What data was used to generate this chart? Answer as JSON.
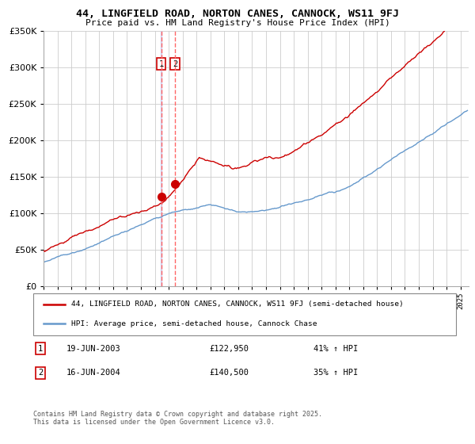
{
  "title1": "44, LINGFIELD ROAD, NORTON CANES, CANNOCK, WS11 9FJ",
  "title2": "Price paid vs. HM Land Registry's House Price Index (HPI)",
  "legend_line1": "44, LINGFIELD ROAD, NORTON CANES, CANNOCK, WS11 9FJ (semi-detached house)",
  "legend_line2": "HPI: Average price, semi-detached house, Cannock Chase",
  "sale1_date": "19-JUN-2003",
  "sale1_price": 122950,
  "sale1_hpi": "41% ↑ HPI",
  "sale2_date": "16-JUN-2004",
  "sale2_price": 140500,
  "sale2_hpi": "35% ↑ HPI",
  "footer": "Contains HM Land Registry data © Crown copyright and database right 2025.\nThis data is licensed under the Open Government Licence v3.0.",
  "hpi_color": "#6699cc",
  "price_color": "#cc0000",
  "vline_color": "#ff6666",
  "vshade_color": "#ccccee",
  "ylim": [
    0,
    350000
  ],
  "yticks": [
    0,
    50000,
    100000,
    150000,
    200000,
    250000,
    300000,
    350000
  ],
  "year_start": 1995,
  "year_end": 2025
}
